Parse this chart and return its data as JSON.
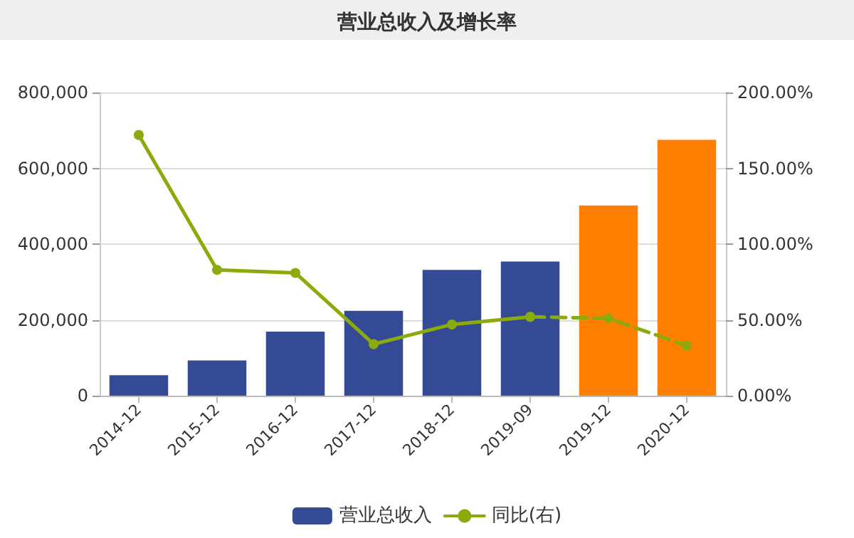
{
  "chart_data": {
    "type": "bar",
    "title": "营业总收入及增长率",
    "categories": [
      "2014-12",
      "2015-12",
      "2016-12",
      "2017-12",
      "2018-12",
      "2019-09",
      "2019-12",
      "2020-12"
    ],
    "series": [
      {
        "name": "营业总收入",
        "color": "#344a94",
        "colors": [
          "#344a94",
          "#344a94",
          "#344a94",
          "#344a94",
          "#344a94",
          "#344a94",
          "#ff7f00",
          "#ff7f00"
        ],
        "values": [
          54000,
          93000,
          169000,
          224000,
          332000,
          354000,
          502000,
          675000
        ]
      },
      {
        "name": "同比(右)",
        "type": "line",
        "axis": "y2",
        "color": "#8aab0b",
        "line_style": "solid",
        "values": [
          172,
          83,
          81,
          34,
          47,
          52,
          null,
          null
        ]
      },
      {
        "type": "line",
        "axis": "y2",
        "color": "#8aab0b",
        "line_style": "dashed",
        "values": [
          null,
          null,
          null,
          null,
          null,
          52,
          51,
          33
        ]
      }
    ],
    "ylim": [
      0,
      800000
    ],
    "yticks": [
      {
        "value": 0,
        "label": "0"
      },
      {
        "value": 200000,
        "label": "200,000"
      },
      {
        "value": 400000,
        "label": "400,000"
      },
      {
        "value": 600000,
        "label": "600,000"
      },
      {
        "value": 800000,
        "label": "800,000"
      }
    ],
    "y2lim": [
      0,
      200
    ],
    "y2ticks": [
      {
        "value": 0,
        "label": "0.00%"
      },
      {
        "value": 50,
        "label": "50.00%"
      },
      {
        "value": 100,
        "label": "100.00%"
      },
      {
        "value": 150,
        "label": "150.00%"
      },
      {
        "value": 200,
        "label": "200.00%"
      }
    ],
    "grid": "y",
    "legend": "bottom",
    "marker": "circle"
  }
}
